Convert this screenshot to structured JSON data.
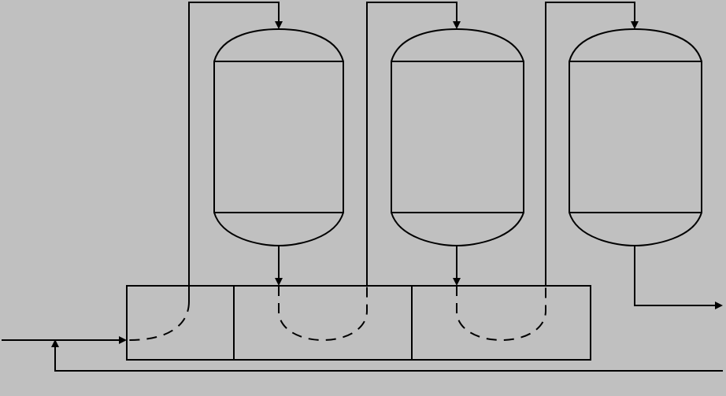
{
  "diagram": {
    "type": "process-flow",
    "colors": {
      "background": "#c0c0c0",
      "line": "#000000"
    },
    "vessels": [
      {
        "name": "vessel-1",
        "shape": "capsule-with-two-bands"
      },
      {
        "name": "vessel-2",
        "shape": "capsule-with-two-bands"
      },
      {
        "name": "vessel-3",
        "shape": "capsule-with-two-bands"
      }
    ],
    "tank": {
      "compartments": 3,
      "liquid_line": "dashed"
    },
    "flows": [
      "feed-inlet",
      "tank-1-to-vessel-1",
      "vessel-1-to-tank-2",
      "tank-2-to-vessel-2",
      "vessel-2-to-tank-3",
      "tank-3-to-vessel-3",
      "vessel-3-outlet",
      "recycle-return"
    ]
  }
}
